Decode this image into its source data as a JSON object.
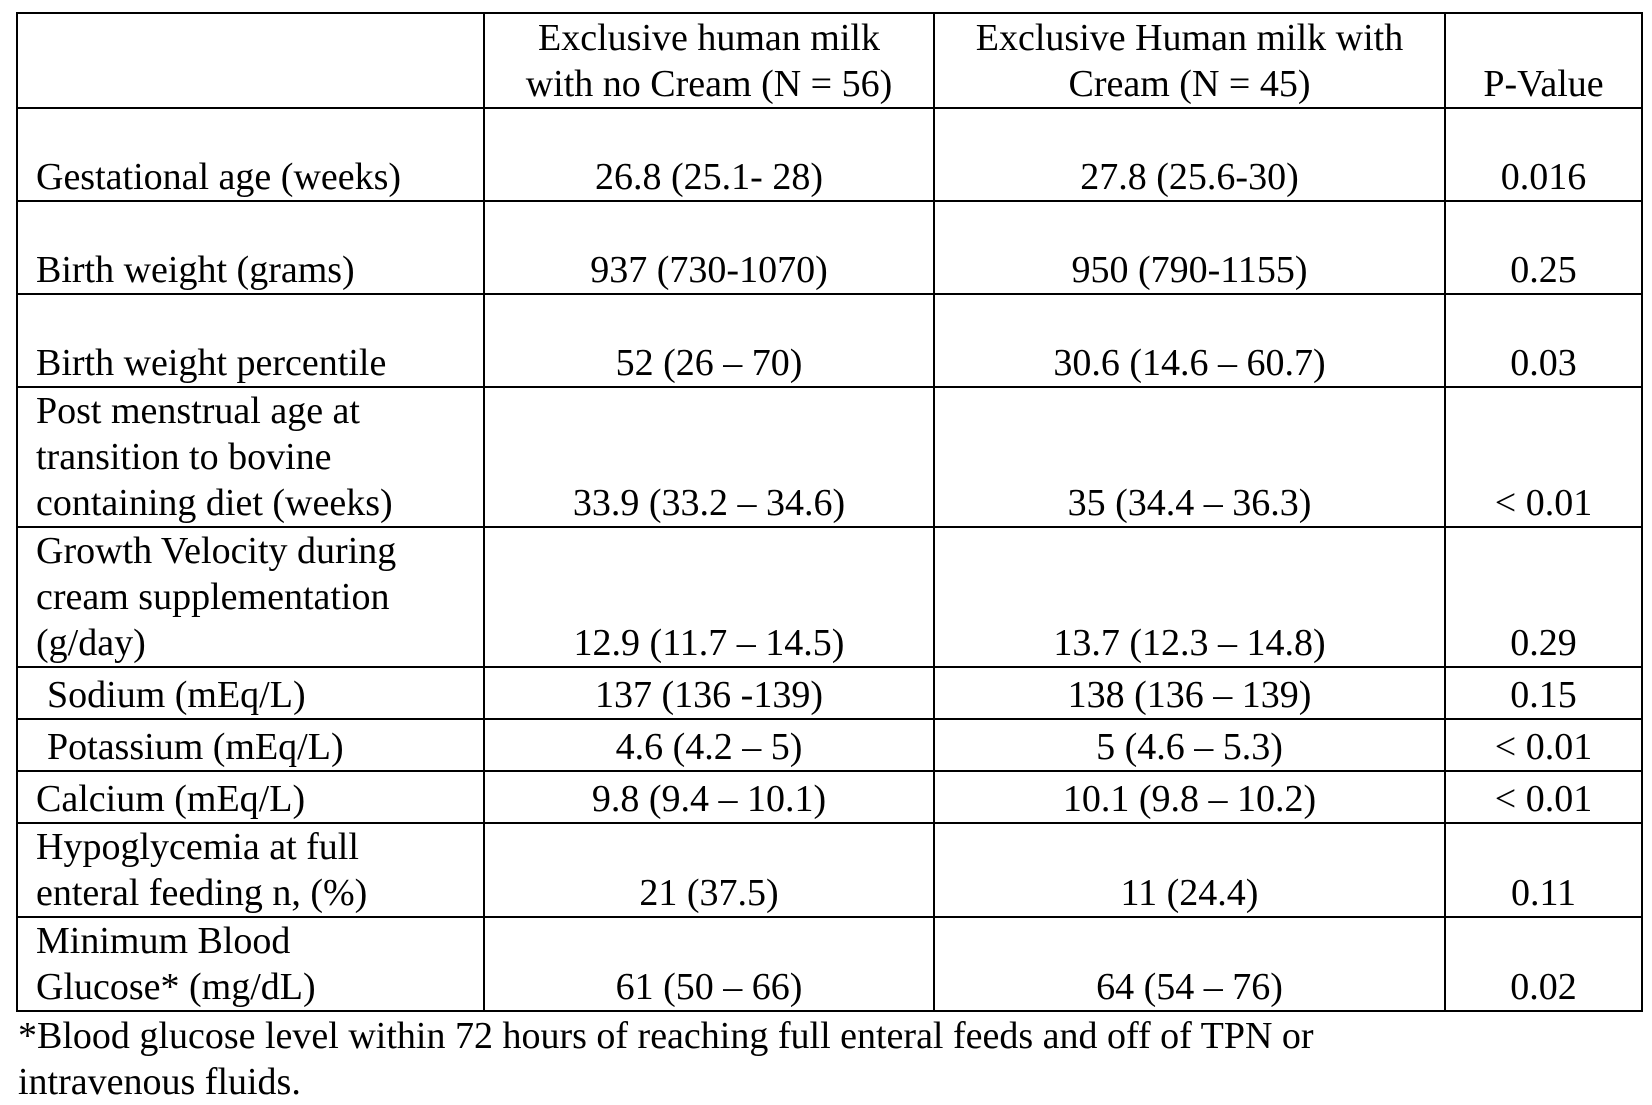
{
  "table": {
    "headers": {
      "label": "",
      "group1": [
        "Exclusive human milk",
        "with no Cream (N = 56)"
      ],
      "group2": [
        "Exclusive Human milk with",
        "Cream (N = 45)"
      ],
      "pvalue": "P-Value"
    },
    "rows": [
      {
        "label": [
          "Gestational age (weeks)"
        ],
        "g1": "26.8 (25.1- 28)",
        "g2": "27.8 (25.6-30)",
        "p": "0.016"
      },
      {
        "label": [
          "Birth weight (grams)"
        ],
        "g1": "937 (730-1070)",
        "g2": "950 (790-1155)",
        "p": "0.25"
      },
      {
        "label": [
          "Birth weight percentile"
        ],
        "g1": "52 (26 – 70)",
        "g2": "30.6 (14.6 – 60.7)",
        "p": "0.03"
      },
      {
        "label": [
          "Post menstrual age at",
          "transition to bovine",
          "containing diet (weeks)"
        ],
        "g1": "33.9 (33.2 – 34.6)",
        "g2": "35 (34.4 – 36.3)",
        "p": "< 0.01"
      },
      {
        "label": [
          "Growth Velocity during",
          "cream supplementation",
          "(g/day)"
        ],
        "g1": "12.9 (11.7 – 14.5)",
        "g2": "13.7 (12.3 – 14.8)",
        "p": "0.29"
      },
      {
        "label": [
          "Sodium (mEq/L)"
        ],
        "g1": "137 (136 -139)",
        "g2": "138 (136 – 139)",
        "p": "0.15"
      },
      {
        "label": [
          "Potassium (mEq/L)"
        ],
        "g1": "4.6 (4.2 – 5)",
        "g2": "5 (4.6 – 5.3)",
        "p": "< 0.01"
      },
      {
        "label": [
          "Calcium (mEq/L)"
        ],
        "g1": "9.8 (9.4 – 10.1)",
        "g2": "10.1 (9.8 – 10.2)",
        "p": "< 0.01"
      },
      {
        "label": [
          "Hypoglycemia at full",
          "enteral feeding n, (%)"
        ],
        "g1": "21 (37.5)",
        "g2": "11 (24.4)",
        "p": "0.11"
      },
      {
        "label": [
          "Minimum Blood",
          "Glucose* (mg/dL)"
        ],
        "g1": "61 (50 – 66)",
        "g2": "64 (54 – 76)",
        "p": "0.02"
      }
    ]
  },
  "footnote": [
    "*Blood glucose level within 72 hours of reaching full enteral feeds and off of TPN or",
    "intravenous fluids."
  ]
}
